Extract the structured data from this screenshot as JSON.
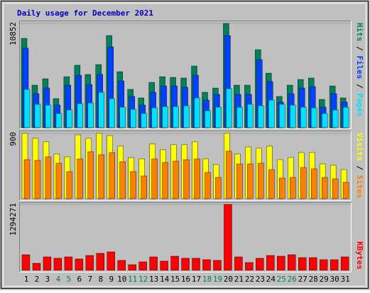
{
  "chart_data": [
    {
      "type": "bar",
      "title": "Daily usage for December 2021",
      "legend_separator": " / ",
      "ylim": [
        0,
        10852
      ],
      "yticks": [
        10852
      ],
      "series": [
        {
          "name": "Hits",
          "color": "#00805c",
          "values": [
            9300,
            4430,
            5090,
            3030,
            5310,
            6500,
            5540,
            6570,
            9590,
            5830,
            3990,
            3100,
            4720,
            5310,
            5240,
            5170,
            6420,
            3690,
            4130,
            10852,
            4430,
            4430,
            8120,
            5680,
            3250,
            4430,
            5020,
            5170,
            2950,
            4350,
            3100
          ]
        },
        {
          "name": "Files",
          "color": "#0040ff",
          "values": [
            8270,
            3540,
            4130,
            2360,
            4430,
            5460,
            4500,
            5540,
            8410,
            4870,
            3250,
            2360,
            3690,
            4350,
            4350,
            4210,
            5460,
            2880,
            3470,
            9590,
            3470,
            3470,
            7080,
            4800,
            2660,
            3540,
            4130,
            4280,
            2140,
            3540,
            2660
          ]
        },
        {
          "name": "Pages",
          "color": "#00e0ff",
          "values": [
            3990,
            2440,
            2360,
            1480,
            1850,
            2510,
            2580,
            3690,
            3030,
            2140,
            1920,
            1480,
            2070,
            2210,
            2210,
            2290,
            3100,
            1770,
            2140,
            4060,
            2140,
            2440,
            2290,
            2880,
            2440,
            2360,
            2140,
            2070,
            1480,
            1850,
            2140
          ]
        }
      ]
    },
    {
      "type": "bar",
      "legend_separator": " / ",
      "ylim": [
        0,
        900
      ],
      "yticks": [
        900
      ],
      "series": [
        {
          "name": "Visits",
          "color": "#ffff00",
          "values": [
            900,
            832,
            783,
            616,
            577,
            880,
            832,
            900,
            870,
            724,
            567,
            548,
            754,
            675,
            744,
            744,
            783,
            548,
            470,
            900,
            616,
            714,
            695,
            724,
            538,
            567,
            636,
            636,
            479,
            460,
            401
          ]
        },
        {
          "name": "Sites",
          "color": "#ff8000",
          "values": [
            538,
            528,
            577,
            489,
            372,
            548,
            646,
            606,
            636,
            509,
            372,
            313,
            548,
            499,
            518,
            538,
            548,
            362,
            293,
            655,
            479,
            479,
            489,
            401,
            284,
            293,
            430,
            411,
            293,
            274,
            225
          ]
        }
      ]
    },
    {
      "type": "bar",
      "ylim": [
        0,
        1294271
      ],
      "yticks": [
        1294271
      ],
      "categories": [
        1,
        2,
        3,
        4,
        5,
        6,
        7,
        8,
        9,
        10,
        11,
        12,
        13,
        14,
        15,
        16,
        17,
        18,
        19,
        20,
        21,
        22,
        23,
        24,
        25,
        26,
        27,
        28,
        29,
        30,
        31
      ],
      "category_colors": [
        "#000000",
        "#000000",
        "#000000",
        "#00805c",
        "#00805c",
        "#000000",
        "#000000",
        "#000000",
        "#000000",
        "#000000",
        "#00805c",
        "#00805c",
        "#000000",
        "#000000",
        "#000000",
        "#000000",
        "#000000",
        "#00805c",
        "#00805c",
        "#000000",
        "#000000",
        "#000000",
        "#000000",
        "#000000",
        "#00805c",
        "#00805c",
        "#000000",
        "#000000",
        "#000000",
        "#000000",
        "#000000"
      ],
      "series": [
        {
          "name": "KBytes",
          "color": "#ff0000",
          "values": [
            306000,
            139000,
            264000,
            237000,
            264000,
            223000,
            292000,
            334000,
            362000,
            195000,
            111000,
            167000,
            264000,
            181000,
            278000,
            237000,
            237000,
            209000,
            195000,
            1294271,
            264000,
            153000,
            237000,
            292000,
            278000,
            306000,
            250000,
            250000,
            209000,
            209000,
            264000
          ]
        }
      ]
    }
  ]
}
